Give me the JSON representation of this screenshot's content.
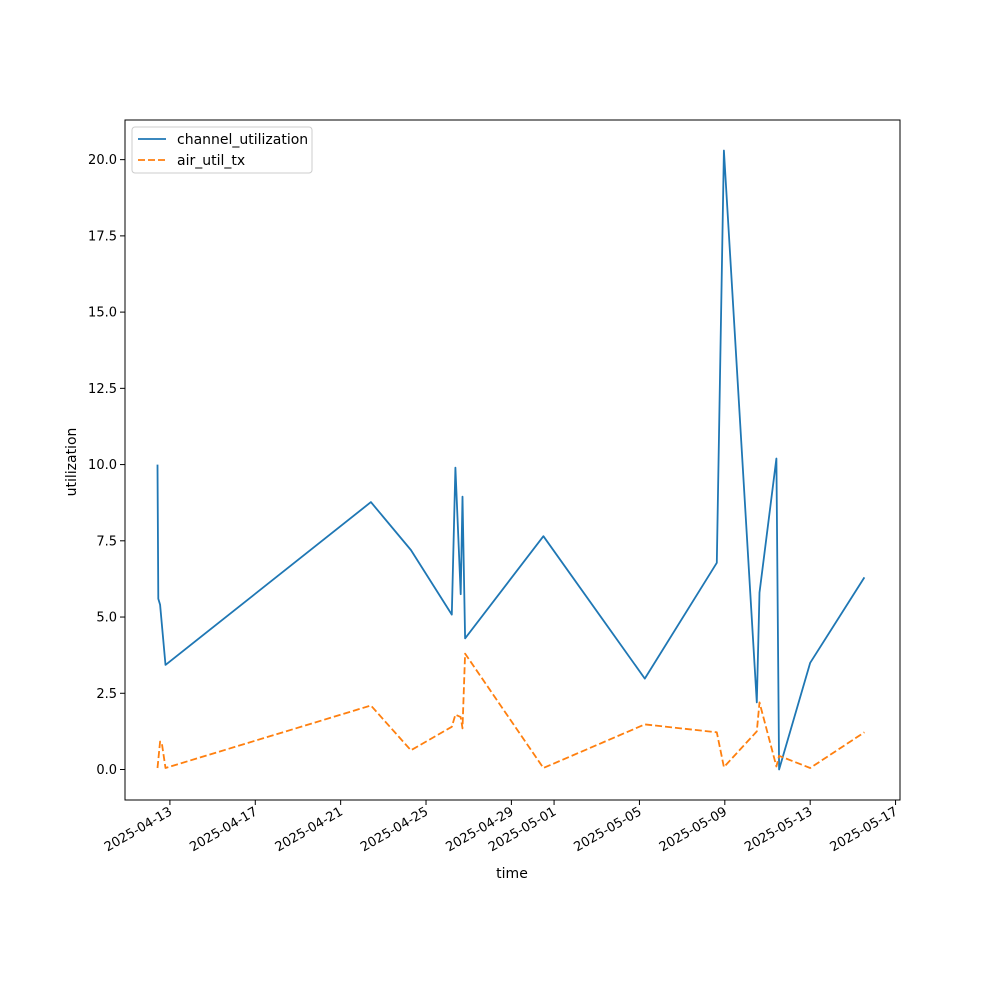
{
  "chart_data": {
    "type": "line",
    "title": "",
    "xlabel": "time",
    "ylabel": "utilization",
    "x_type": "date",
    "xlim": [
      "2025-04-10T21:30",
      "2025-05-17T05:00"
    ],
    "ylim": [
      -1.0,
      21.3
    ],
    "xticks": [
      "2025-04-13",
      "2025-04-17",
      "2025-04-21",
      "2025-04-25",
      "2025-04-29",
      "2025-05-01",
      "2025-05-05",
      "2025-05-09",
      "2025-05-13",
      "2025-05-17"
    ],
    "yticks": [
      "0.0",
      "2.5",
      "5.0",
      "7.5",
      "10.0",
      "12.5",
      "15.0",
      "17.5",
      "20.0"
    ],
    "grid": false,
    "legend": "top-left",
    "series": [
      {
        "name": "channel_utilization",
        "color": "#1f77b4",
        "style": "solid",
        "points": [
          [
            "2025-04-12T10:00",
            10.0
          ],
          [
            "2025-04-12T11:00",
            5.6
          ],
          [
            "2025-04-12T13:00",
            5.4
          ],
          [
            "2025-04-12T19:00",
            3.43
          ],
          [
            "2025-04-22T10:00",
            8.77
          ],
          [
            "2025-04-24T07:00",
            7.2
          ],
          [
            "2025-04-26T05:00",
            5.08
          ],
          [
            "2025-04-26T09:00",
            9.9
          ],
          [
            "2025-04-26T15:00",
            5.75
          ],
          [
            "2025-04-26T17:00",
            8.95
          ],
          [
            "2025-04-26T20:00",
            4.3
          ],
          [
            "2025-04-30T12:00",
            7.65
          ],
          [
            "2025-05-05T06:00",
            2.98
          ],
          [
            "2025-05-08T15:00",
            6.78
          ],
          [
            "2025-05-08T23:00",
            20.3
          ],
          [
            "2025-05-10T12:00",
            2.2
          ],
          [
            "2025-05-10T15:00",
            5.8
          ],
          [
            "2025-05-11T10:00",
            10.2
          ],
          [
            "2025-05-11T13:00",
            0.0
          ],
          [
            "2025-05-13T00:00",
            3.5
          ],
          [
            "2025-05-15T13:00",
            6.3
          ]
        ]
      },
      {
        "name": "air_util_tx",
        "color": "#ff7f0e",
        "style": "dashed",
        "points": [
          [
            "2025-04-12T10:00",
            0.05
          ],
          [
            "2025-04-12T13:00",
            0.92
          ],
          [
            "2025-04-12T15:00",
            0.85
          ],
          [
            "2025-04-12T19:00",
            0.05
          ],
          [
            "2025-04-22T10:00",
            2.1
          ],
          [
            "2025-04-24T07:00",
            0.63
          ],
          [
            "2025-04-26T05:00",
            1.4
          ],
          [
            "2025-04-26T09:00",
            1.8
          ],
          [
            "2025-04-26T15:00",
            1.72
          ],
          [
            "2025-04-26T17:00",
            1.35
          ],
          [
            "2025-04-26T20:00",
            3.8
          ],
          [
            "2025-04-30T12:00",
            0.05
          ],
          [
            "2025-05-05T06:00",
            1.48
          ],
          [
            "2025-05-08T15:00",
            1.22
          ],
          [
            "2025-05-08T23:00",
            0.08
          ],
          [
            "2025-05-10T12:00",
            1.25
          ],
          [
            "2025-05-10T15:00",
            2.2
          ],
          [
            "2025-05-11T10:00",
            0.1
          ],
          [
            "2025-05-11T13:00",
            0.45
          ],
          [
            "2025-05-13T00:00",
            0.05
          ],
          [
            "2025-05-15T13:00",
            1.22
          ]
        ]
      }
    ]
  }
}
